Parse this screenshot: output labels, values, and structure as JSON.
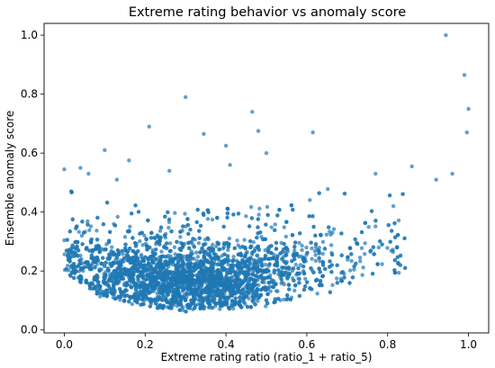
{
  "chart_data": {
    "type": "scatter",
    "title": "Extreme rating behavior vs anomaly score",
    "xlabel": "Extreme rating ratio (ratio_1 + ratio_5)",
    "ylabel": "Ensemble anomaly score",
    "xlim": [
      -0.05,
      1.05
    ],
    "ylim": [
      -0.01,
      1.04
    ],
    "xticks": [
      "0.0",
      "0.2",
      "0.4",
      "0.6",
      "0.8",
      "1.0"
    ],
    "yticks": [
      "0.0",
      "0.2",
      "0.4",
      "0.6",
      "0.8",
      "1.0"
    ],
    "grid": false,
    "color": "#1f77b4",
    "point_alpha": 0.7,
    "approx_point_count": 4000,
    "dense_cloud": {
      "x_range": [
        0.0,
        0.85
      ],
      "x_center": 0.3,
      "typical_y": [
        0.05,
        0.45
      ],
      "y_floor_curve": [
        [
          0.02,
          0.18
        ],
        [
          0.1,
          0.1
        ],
        [
          0.3,
          0.06
        ],
        [
          0.5,
          0.08
        ],
        [
          0.7,
          0.14
        ],
        [
          0.85,
          0.2
        ]
      ],
      "median_curve": [
        [
          0.02,
          0.24
        ],
        [
          0.15,
          0.18
        ],
        [
          0.3,
          0.16
        ],
        [
          0.45,
          0.17
        ],
        [
          0.6,
          0.21
        ],
        [
          0.8,
          0.28
        ]
      ]
    },
    "outliers": [
      {
        "x": 0.944,
        "y": 1.0
      },
      {
        "x": 0.99,
        "y": 0.865
      },
      {
        "x": 1.0,
        "y": 0.75
      },
      {
        "x": 0.996,
        "y": 0.67
      },
      {
        "x": 0.3,
        "y": 0.79
      },
      {
        "x": 0.465,
        "y": 0.74
      },
      {
        "x": 0.21,
        "y": 0.69
      },
      {
        "x": 0.48,
        "y": 0.675
      },
      {
        "x": 0.345,
        "y": 0.665
      },
      {
        "x": 0.615,
        "y": 0.67
      },
      {
        "x": 0.4,
        "y": 0.625
      },
      {
        "x": 0.1,
        "y": 0.61
      },
      {
        "x": 0.5,
        "y": 0.6
      },
      {
        "x": 0.16,
        "y": 0.575
      },
      {
        "x": 0.0,
        "y": 0.545
      },
      {
        "x": 0.04,
        "y": 0.55
      },
      {
        "x": 0.06,
        "y": 0.53
      },
      {
        "x": 0.86,
        "y": 0.555
      },
      {
        "x": 0.96,
        "y": 0.53
      },
      {
        "x": 0.92,
        "y": 0.51
      },
      {
        "x": 0.77,
        "y": 0.53
      },
      {
        "x": 0.13,
        "y": 0.51
      },
      {
        "x": 0.41,
        "y": 0.56
      },
      {
        "x": 0.26,
        "y": 0.54
      }
    ]
  }
}
